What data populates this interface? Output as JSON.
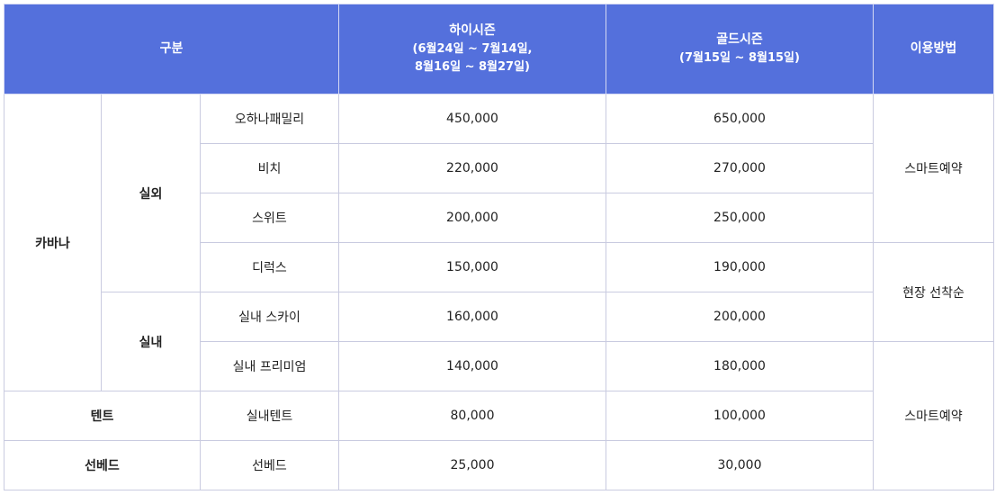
{
  "colors": {
    "header_bg": "#5470dc",
    "header_text": "#ffffff",
    "border": "#c9cbe0"
  },
  "header": {
    "category": "구분",
    "high_season": {
      "title": "하이시즌",
      "period_line1": "(6월24일 ~ 7월14일,",
      "period_line2": "8월16일 ~ 8월27일)"
    },
    "gold_season": {
      "title": "골드시즌",
      "period": "(7월15일 ~ 8월15일)"
    },
    "usage": "이용방법"
  },
  "groups": {
    "cabana": "카바나",
    "outdoor": "실외",
    "indoor": "실내",
    "tent": "텐트",
    "sunbed": "선베드"
  },
  "usage_methods": {
    "smart_reservation_1": "스마트예약",
    "on_site": "현장 선착순",
    "smart_reservation_2": "스마트예약"
  },
  "rows": [
    {
      "type": "오하나패밀리",
      "high": "450,000",
      "gold": "650,000"
    },
    {
      "type": "비치",
      "high": "220,000",
      "gold": "270,000"
    },
    {
      "type": "스위트",
      "high": "200,000",
      "gold": "250,000"
    },
    {
      "type": "디럭스",
      "high": "150,000",
      "gold": "190,000"
    },
    {
      "type": "실내 스카이",
      "high": "160,000",
      "gold": "200,000"
    },
    {
      "type": "실내 프리미엄",
      "high": "140,000",
      "gold": "180,000"
    },
    {
      "type": "실내텐트",
      "high": "80,000",
      "gold": "100,000"
    },
    {
      "type": "선베드",
      "high": "25,000",
      "gold": "30,000"
    }
  ]
}
